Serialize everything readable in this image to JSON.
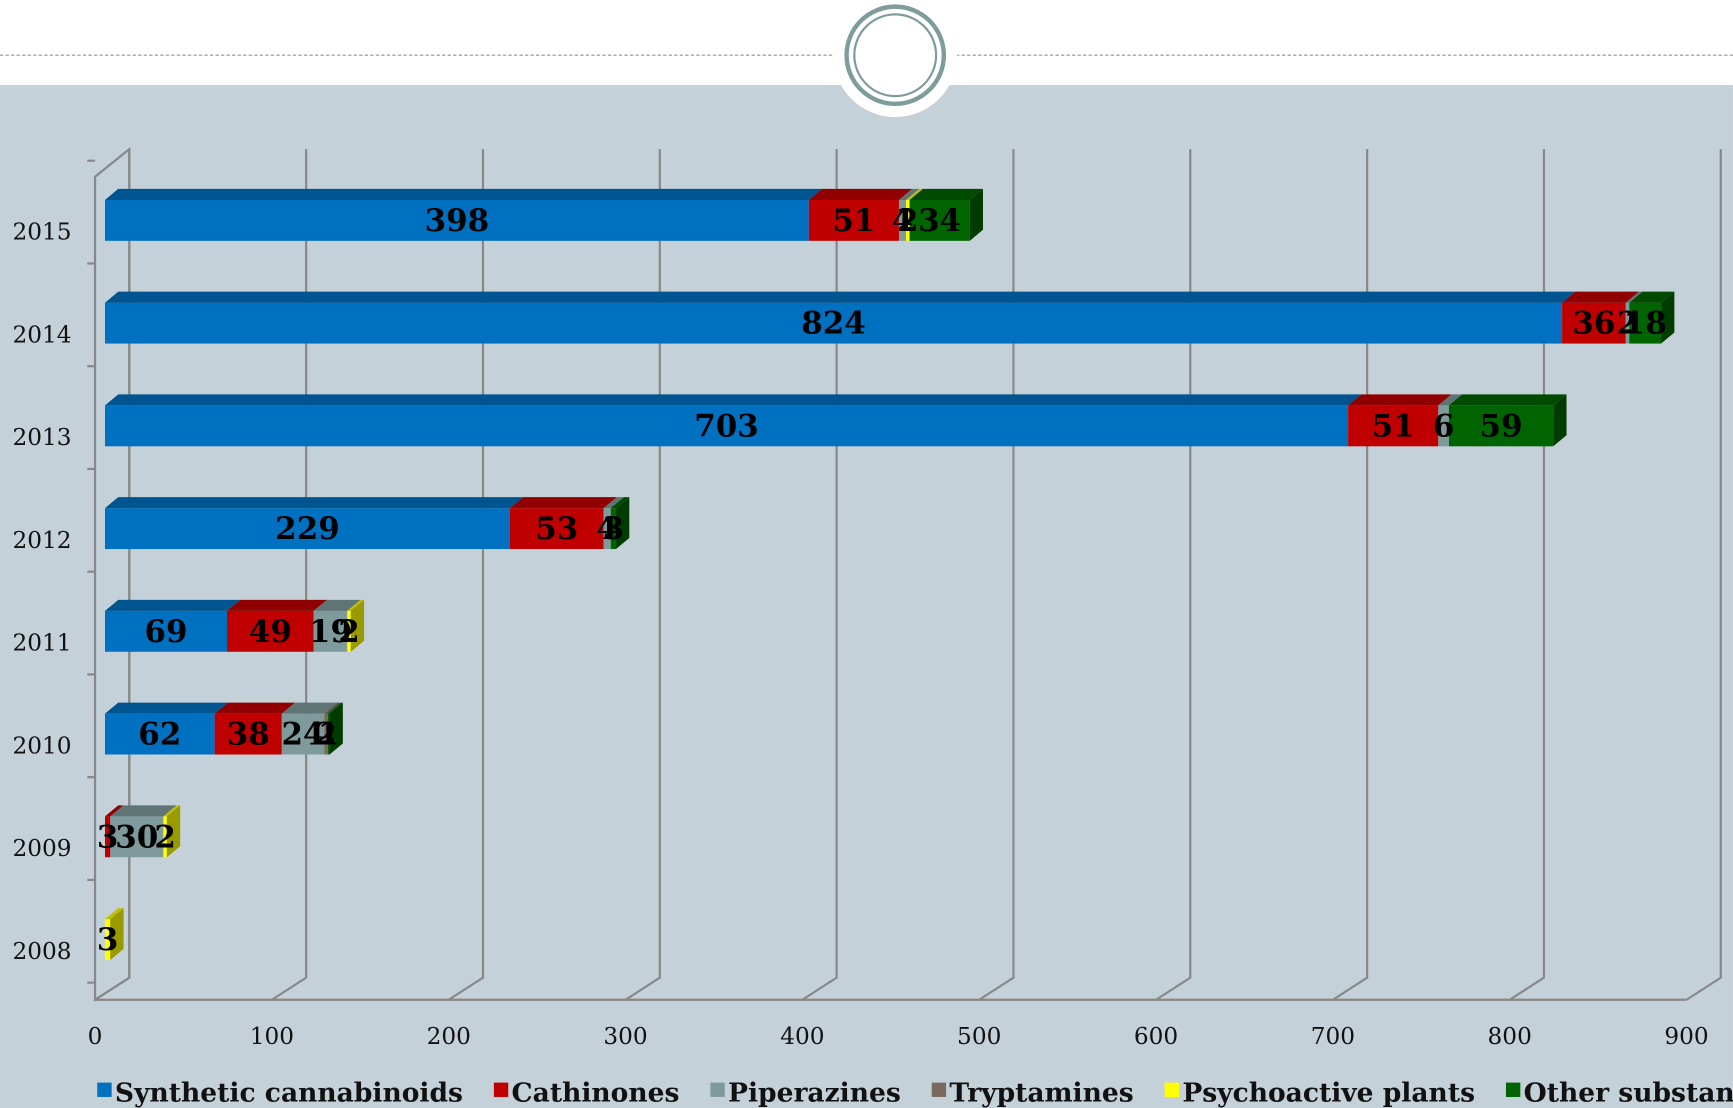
{
  "chart_data": {
    "type": "bar",
    "orientation": "horizontal",
    "stacked": true,
    "categories": [
      "2008",
      "2009",
      "2010",
      "2011",
      "2012",
      "2013",
      "2014",
      "2015"
    ],
    "series": [
      {
        "name": "Synthetic cannabinoids",
        "color": "#0070c0",
        "values": [
          null,
          null,
          62,
          69,
          229,
          703,
          824,
          398
        ]
      },
      {
        "name": "Cathinones",
        "color": "#c00000",
        "values": [
          null,
          3,
          38,
          49,
          53,
          51,
          36,
          51
        ]
      },
      {
        "name": "Piperazines",
        "color": "#7f9a9a",
        "values": [
          null,
          30,
          24,
          19,
          4,
          6,
          2,
          4
        ]
      },
      {
        "name": "Tryptamines",
        "color": "#7a6a5e",
        "values": [
          null,
          null,
          2,
          null,
          null,
          null,
          null,
          null
        ]
      },
      {
        "name": "Psychoactive plants",
        "color": "#ffff00",
        "values": [
          3,
          2,
          null,
          2,
          null,
          null,
          null,
          2
        ]
      },
      {
        "name": "Other substances",
        "color": "#006400",
        "values": [
          null,
          null,
          1,
          null,
          3,
          59,
          18,
          34
        ]
      }
    ],
    "xlim": [
      0,
      900
    ],
    "xticks": [
      0,
      100,
      200,
      300,
      400,
      500,
      600,
      700,
      800,
      900
    ],
    "grid": true,
    "legend": "bottom"
  }
}
